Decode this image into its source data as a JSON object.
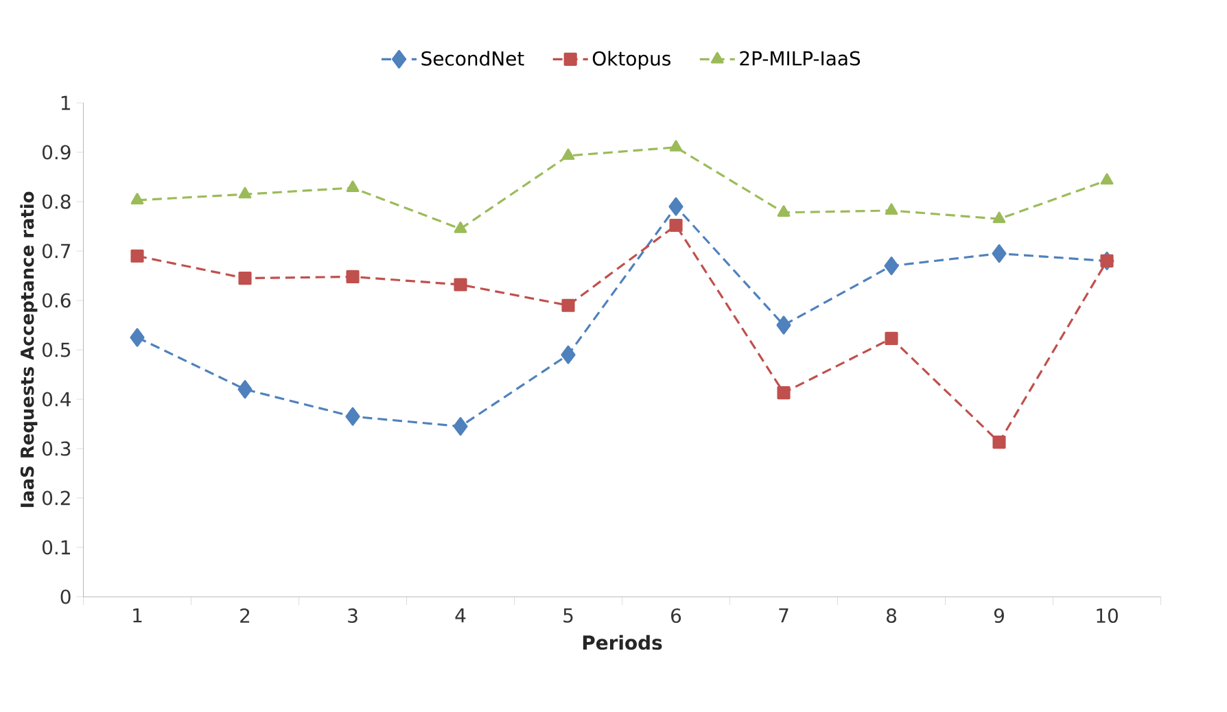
{
  "chart_data": {
    "type": "line",
    "xlabel": "Periods",
    "ylabel": "IaaS Requests Acceptance ratio",
    "categories": [
      "1",
      "2",
      "3",
      "4",
      "5",
      "6",
      "7",
      "8",
      "9",
      "10"
    ],
    "series": [
      {
        "name": "SecondNet",
        "color": "#4f81bd",
        "marker": "diamond",
        "values": [
          0.525,
          0.42,
          0.365,
          0.345,
          0.49,
          0.79,
          0.55,
          0.67,
          0.695,
          0.68
        ]
      },
      {
        "name": "Oktopus",
        "color": "#c0504d",
        "marker": "square",
        "values": [
          0.69,
          0.645,
          0.648,
          0.632,
          0.59,
          0.752,
          0.413,
          0.523,
          0.313,
          0.68
        ]
      },
      {
        "name": "2P-MILP-IaaS",
        "color": "#9bbb59",
        "marker": "triangle",
        "values": [
          0.803,
          0.815,
          0.828,
          0.745,
          0.893,
          0.91,
          0.778,
          0.782,
          0.765,
          0.843
        ]
      }
    ],
    "ylim": [
      0,
      1
    ],
    "yticks": [
      0,
      0.1,
      0.2,
      0.3,
      0.4,
      0.5,
      0.6,
      0.7,
      0.8,
      0.9,
      1
    ],
    "line_style": "dashed",
    "grid": false,
    "legend": "top"
  }
}
